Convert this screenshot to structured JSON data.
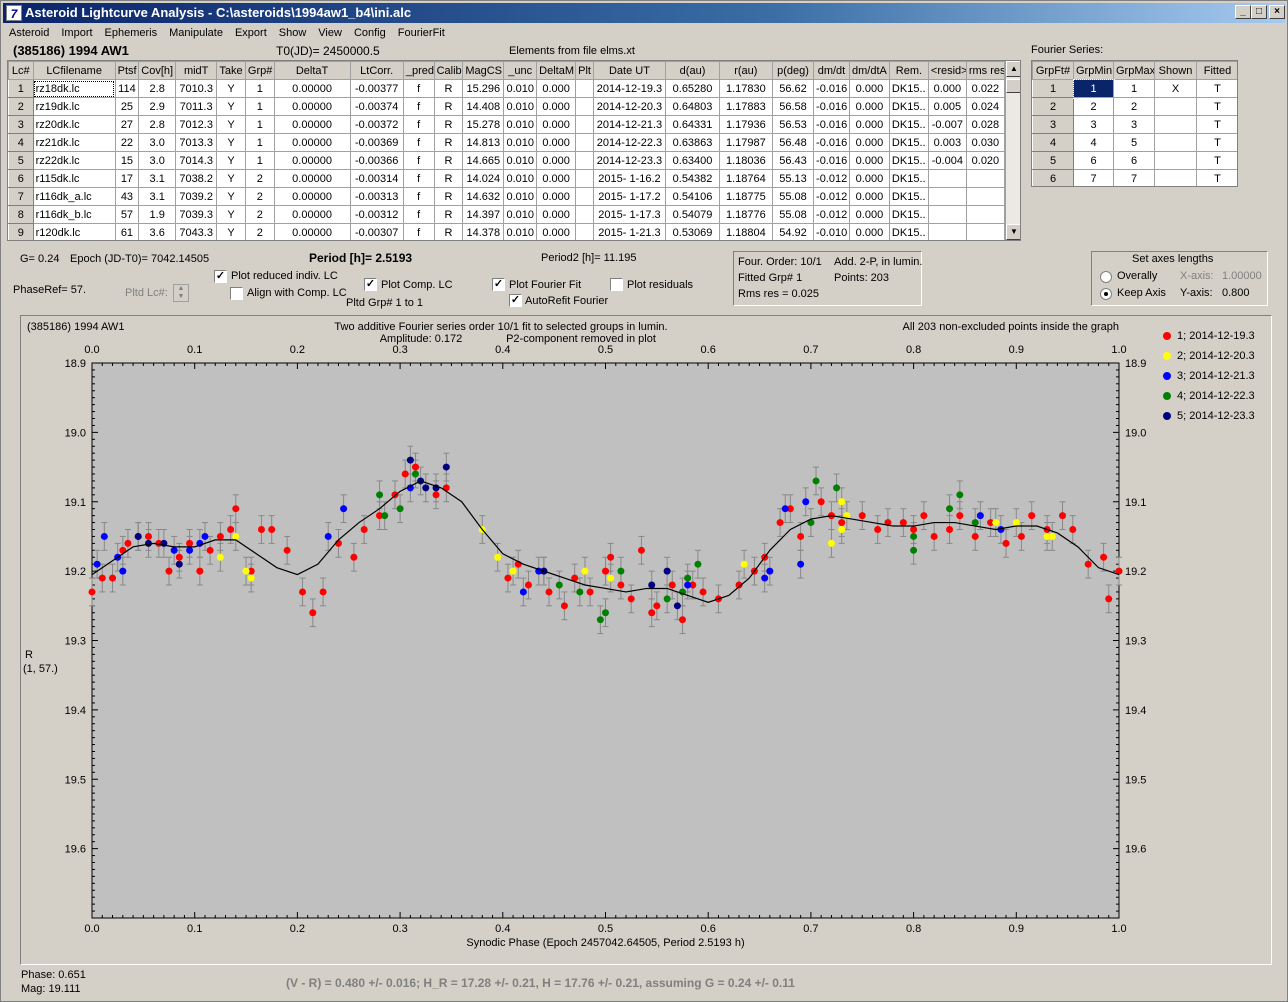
{
  "window": {
    "title": "Asteroid Lightcurve Analysis - C:\\asteroids\\1994aw1_b4\\ini.alc",
    "min": "_",
    "max": "□",
    "close": "×",
    "icon": "7"
  },
  "menu": [
    "Asteroid",
    "Import",
    "Ephemeris",
    "Manipulate",
    "Export",
    "Show",
    "View",
    "Config",
    "FourierFit"
  ],
  "header": {
    "object": "(385186) 1994 AW1",
    "t0": "T0(JD)= 2450000.5",
    "elements": "Elements from file elms.xt",
    "fourier_label": "Fourier Series:"
  },
  "lc_table": {
    "columns": [
      "Lc#",
      "LCfilename",
      "Ptsf",
      "Cov[h]",
      "midT",
      "Take",
      "Grp#",
      "DeltaT",
      "LtCorr.",
      "_pred.",
      "Calib.",
      "MagCS",
      "_unc",
      "DeltaM",
      "Plt",
      "Date UT",
      "d(au)",
      "r(au)",
      "p(deg)",
      "dm/dt",
      "dm/dtA",
      "Rem.",
      "<resid>",
      "rms res"
    ],
    "rows": [
      [
        "1",
        "rz18dk.lc",
        "114",
        "2.8",
        "7010.3",
        "Y",
        "1",
        "0.00000",
        "-0.00377",
        "f",
        "R",
        "15.296",
        "0.010",
        "0.000",
        "",
        "2014-12-19.3",
        "0.65280",
        "1.17830",
        "56.62",
        "-0.016",
        "0.000",
        "DK15..",
        "0.000",
        "0.022"
      ],
      [
        "2",
        "rz19dk.lc",
        "25",
        "2.9",
        "7011.3",
        "Y",
        "1",
        "0.00000",
        "-0.00374",
        "f",
        "R",
        "14.408",
        "0.010",
        "0.000",
        "",
        "2014-12-20.3",
        "0.64803",
        "1.17883",
        "56.58",
        "-0.016",
        "0.000",
        "DK15..",
        "0.005",
        "0.024"
      ],
      [
        "3",
        "rz20dk.lc",
        "27",
        "2.8",
        "7012.3",
        "Y",
        "1",
        "0.00000",
        "-0.00372",
        "f",
        "R",
        "15.278",
        "0.010",
        "0.000",
        "",
        "2014-12-21.3",
        "0.64331",
        "1.17936",
        "56.53",
        "-0.016",
        "0.000",
        "DK15..",
        "-0.007",
        "0.028"
      ],
      [
        "4",
        "rz21dk.lc",
        "22",
        "3.0",
        "7013.3",
        "Y",
        "1",
        "0.00000",
        "-0.00369",
        "f",
        "R",
        "14.813",
        "0.010",
        "0.000",
        "",
        "2014-12-22.3",
        "0.63863",
        "1.17987",
        "56.48",
        "-0.016",
        "0.000",
        "DK15..",
        "0.003",
        "0.030"
      ],
      [
        "5",
        "rz22dk.lc",
        "15",
        "3.0",
        "7014.3",
        "Y",
        "1",
        "0.00000",
        "-0.00366",
        "f",
        "R",
        "14.665",
        "0.010",
        "0.000",
        "",
        "2014-12-23.3",
        "0.63400",
        "1.18036",
        "56.43",
        "-0.016",
        "0.000",
        "DK15..",
        "-0.004",
        "0.020"
      ],
      [
        "6",
        "r115dk.lc",
        "17",
        "3.1",
        "7038.2",
        "Y",
        "2",
        "0.00000",
        "-0.00314",
        "f",
        "R",
        "14.024",
        "0.010",
        "0.000",
        "",
        "2015- 1-16.2",
        "0.54382",
        "1.18764",
        "55.13",
        "-0.012",
        "0.000",
        "DK15..",
        "",
        ""
      ],
      [
        "7",
        "r116dk_a.lc",
        "43",
        "3.1",
        "7039.2",
        "Y",
        "2",
        "0.00000",
        "-0.00313",
        "f",
        "R",
        "14.632",
        "0.010",
        "0.000",
        "",
        "2015- 1-17.2",
        "0.54106",
        "1.18775",
        "55.08",
        "-0.012",
        "0.000",
        "DK15..",
        "",
        ""
      ],
      [
        "8",
        "r116dk_b.lc",
        "57",
        "1.9",
        "7039.3",
        "Y",
        "2",
        "0.00000",
        "-0.00312",
        "f",
        "R",
        "14.397",
        "0.010",
        "0.000",
        "",
        "2015- 1-17.3",
        "0.54079",
        "1.18776",
        "55.08",
        "-0.012",
        "0.000",
        "DK15..",
        "",
        ""
      ],
      [
        "9",
        "r120dk.lc",
        "61",
        "3.6",
        "7043.3",
        "Y",
        "2",
        "0.00000",
        "-0.00307",
        "f",
        "R",
        "14.378",
        "0.010",
        "0.000",
        "",
        "2015- 1-21.3",
        "0.53069",
        "1.18804",
        "54.92",
        "-0.010",
        "0.000",
        "DK15..",
        "",
        ""
      ]
    ]
  },
  "fourier_table": {
    "columns": [
      "GrpFt#",
      "GrpMin",
      "GrpMax",
      "Shown",
      "Fitted"
    ],
    "rows": [
      [
        "1",
        "1",
        "1",
        "X",
        "T"
      ],
      [
        "2",
        "2",
        "2",
        "",
        "T"
      ],
      [
        "3",
        "3",
        "3",
        "",
        "T"
      ],
      [
        "4",
        "4",
        "5",
        "",
        "T"
      ],
      [
        "5",
        "6",
        "6",
        "",
        "T"
      ],
      [
        "6",
        "7",
        "7",
        "",
        "T"
      ]
    ]
  },
  "controls": {
    "g_value": "G= 0.24",
    "epoch": "Epoch (JD-T0)= 7042.14505",
    "period": "Period [h]= 2.5193",
    "period2": "Period2 [h]= 11.195",
    "phaseref": "PhaseRef= 57.",
    "pltd_lc": "Pltd Lc#:",
    "plot_reduced": "Plot reduced indiv. LC",
    "align_comp": "Align with Comp. LC",
    "plot_comp": "Plot Comp. LC",
    "pltd_grp": "Pltd Grp#  1   to   1",
    "plot_fourier": "Plot Fourier Fit",
    "autorefit": "AutoRefit Fourier",
    "plot_residuals": "Plot residuals",
    "four_order": "Four. Order: 10/1",
    "add_2p": "Add. 2-P, in lumin.",
    "fitted_grp": "Fitted Grp# 1",
    "points": "Points: 203",
    "rms_res": "Rms res     = 0.025",
    "axes_title": "Set axes lengths",
    "overally": "Overally",
    "keep_axis": "Keep Axis",
    "xaxis_label": "X-axis:",
    "xaxis_value": "1.00000",
    "yaxis_label": "Y-axis:",
    "yaxis_value": "0.800",
    "check_mark": "✓"
  },
  "chart_data": {
    "type": "scatter",
    "title_left": "(385186) 1994 AW1",
    "title_center": "Two additive Fourier series order 10/1 fit to selected groups in lumin.",
    "subtitle_a": "Amplitude: 0.172",
    "subtitle_b": "P2-component removed in plot",
    "title_right": "All 203 non-excluded points inside the graph",
    "xlabel": "Synodic Phase (Epoch 2457042.64505, Period 2.5193 h)",
    "ylabel": "R",
    "ylabel2": "(1, 57.)",
    "xlim": [
      0,
      1
    ],
    "ylim": [
      18.9,
      19.7
    ],
    "y_inverted": true,
    "xticks": [
      "0.0",
      "0.1",
      "0.2",
      "0.3",
      "0.4",
      "0.5",
      "0.6",
      "0.7",
      "0.8",
      "0.9",
      "1.0"
    ],
    "yticks": [
      "18.9",
      "19.0",
      "19.1",
      "19.2",
      "19.3",
      "19.4",
      "19.5",
      "19.6"
    ],
    "series": [
      {
        "name": "1; 2014-12-19.3",
        "color": "#ff0000",
        "points": [
          [
            0.0,
            19.23
          ],
          [
            0.01,
            19.21
          ],
          [
            0.02,
            19.21
          ],
          [
            0.03,
            19.17
          ],
          [
            0.035,
            19.16
          ],
          [
            0.045,
            19.15
          ],
          [
            0.055,
            19.15
          ],
          [
            0.065,
            19.16
          ],
          [
            0.075,
            19.2
          ],
          [
            0.085,
            19.18
          ],
          [
            0.095,
            19.16
          ],
          [
            0.105,
            19.2
          ],
          [
            0.115,
            19.17
          ],
          [
            0.125,
            19.15
          ],
          [
            0.135,
            19.14
          ],
          [
            0.14,
            19.11
          ],
          [
            0.155,
            19.2
          ],
          [
            0.165,
            19.14
          ],
          [
            0.175,
            19.14
          ],
          [
            0.19,
            19.17
          ],
          [
            0.205,
            19.23
          ],
          [
            0.215,
            19.26
          ],
          [
            0.225,
            19.23
          ],
          [
            0.24,
            19.16
          ],
          [
            0.255,
            19.18
          ],
          [
            0.265,
            19.14
          ],
          [
            0.28,
            19.12
          ],
          [
            0.295,
            19.09
          ],
          [
            0.305,
            19.06
          ],
          [
            0.315,
            19.05
          ],
          [
            0.335,
            19.09
          ],
          [
            0.345,
            19.08
          ],
          [
            0.405,
            19.21
          ],
          [
            0.415,
            19.19
          ],
          [
            0.425,
            19.22
          ],
          [
            0.44,
            19.2
          ],
          [
            0.445,
            19.23
          ],
          [
            0.46,
            19.25
          ],
          [
            0.47,
            19.21
          ],
          [
            0.485,
            19.23
          ],
          [
            0.5,
            19.2
          ],
          [
            0.505,
            19.18
          ],
          [
            0.515,
            19.22
          ],
          [
            0.525,
            19.24
          ],
          [
            0.535,
            19.17
          ],
          [
            0.545,
            19.26
          ],
          [
            0.55,
            19.25
          ],
          [
            0.565,
            19.22
          ],
          [
            0.575,
            19.27
          ],
          [
            0.585,
            19.22
          ],
          [
            0.595,
            19.23
          ],
          [
            0.61,
            19.24
          ],
          [
            0.63,
            19.22
          ],
          [
            0.645,
            19.2
          ],
          [
            0.655,
            19.18
          ],
          [
            0.67,
            19.13
          ],
          [
            0.68,
            19.11
          ],
          [
            0.69,
            19.15
          ],
          [
            0.71,
            19.1
          ],
          [
            0.72,
            19.12
          ],
          [
            0.73,
            19.13
          ],
          [
            0.75,
            19.12
          ],
          [
            0.765,
            19.14
          ],
          [
            0.775,
            19.13
          ],
          [
            0.79,
            19.13
          ],
          [
            0.8,
            19.14
          ],
          [
            0.81,
            19.12
          ],
          [
            0.82,
            19.15
          ],
          [
            0.835,
            19.14
          ],
          [
            0.845,
            19.12
          ],
          [
            0.86,
            19.15
          ],
          [
            0.875,
            19.13
          ],
          [
            0.89,
            19.16
          ],
          [
            0.905,
            19.15
          ],
          [
            0.915,
            19.12
          ],
          [
            0.93,
            19.14
          ],
          [
            0.945,
            19.12
          ],
          [
            0.955,
            19.14
          ],
          [
            0.97,
            19.19
          ],
          [
            0.985,
            19.18
          ],
          [
            0.99,
            19.24
          ],
          [
            1.0,
            19.2
          ]
        ]
      },
      {
        "name": "2; 2014-12-20.3",
        "color": "#ffff00",
        "points": [
          [
            0.125,
            19.18
          ],
          [
            0.14,
            19.15
          ],
          [
            0.15,
            19.2
          ],
          [
            0.155,
            19.21
          ],
          [
            0.38,
            19.14
          ],
          [
            0.395,
            19.18
          ],
          [
            0.41,
            19.2
          ],
          [
            0.48,
            19.2
          ],
          [
            0.505,
            19.21
          ],
          [
            0.635,
            19.19
          ],
          [
            0.72,
            19.16
          ],
          [
            0.73,
            19.14
          ],
          [
            0.73,
            19.1
          ],
          [
            0.735,
            19.12
          ],
          [
            0.88,
            19.13
          ],
          [
            0.9,
            19.13
          ],
          [
            0.93,
            19.15
          ],
          [
            0.935,
            19.15
          ]
        ]
      },
      {
        "name": "3; 2014-12-21.3",
        "color": "#0000ff",
        "points": [
          [
            0.005,
            19.19
          ],
          [
            0.012,
            19.15
          ],
          [
            0.025,
            19.18
          ],
          [
            0.03,
            19.2
          ],
          [
            0.08,
            19.17
          ],
          [
            0.095,
            19.17
          ],
          [
            0.105,
            19.16
          ],
          [
            0.11,
            19.15
          ],
          [
            0.23,
            19.15
          ],
          [
            0.245,
            19.11
          ],
          [
            0.31,
            19.08
          ],
          [
            0.42,
            19.23
          ],
          [
            0.435,
            19.2
          ],
          [
            0.58,
            19.22
          ],
          [
            0.655,
            19.21
          ],
          [
            0.66,
            19.2
          ],
          [
            0.675,
            19.11
          ],
          [
            0.69,
            19.19
          ],
          [
            0.695,
            19.1
          ],
          [
            0.865,
            19.12
          ],
          [
            0.885,
            19.14
          ]
        ]
      },
      {
        "name": "4; 2014-12-22.3",
        "color": "#008000",
        "points": [
          [
            0.28,
            19.09
          ],
          [
            0.285,
            19.12
          ],
          [
            0.3,
            19.11
          ],
          [
            0.315,
            19.06
          ],
          [
            0.455,
            19.22
          ],
          [
            0.475,
            19.23
          ],
          [
            0.495,
            19.27
          ],
          [
            0.5,
            19.26
          ],
          [
            0.515,
            19.2
          ],
          [
            0.56,
            19.24
          ],
          [
            0.575,
            19.23
          ],
          [
            0.58,
            19.21
          ],
          [
            0.59,
            19.19
          ],
          [
            0.7,
            19.13
          ],
          [
            0.705,
            19.07
          ],
          [
            0.725,
            19.08
          ],
          [
            0.8,
            19.17
          ],
          [
            0.8,
            19.15
          ],
          [
            0.835,
            19.11
          ],
          [
            0.845,
            19.09
          ],
          [
            0.86,
            19.13
          ]
        ]
      },
      {
        "name": "5; 2014-12-23.3",
        "color": "#000080",
        "points": [
          [
            0.045,
            19.15
          ],
          [
            0.055,
            19.16
          ],
          [
            0.07,
            19.16
          ],
          [
            0.085,
            19.19
          ],
          [
            0.31,
            19.04
          ],
          [
            0.32,
            19.07
          ],
          [
            0.325,
            19.08
          ],
          [
            0.335,
            19.08
          ],
          [
            0.345,
            19.05
          ],
          [
            0.44,
            19.2
          ],
          [
            0.545,
            19.22
          ],
          [
            0.56,
            19.2
          ],
          [
            0.57,
            19.25
          ]
        ]
      }
    ],
    "fit_curve": [
      [
        0.0,
        19.205
      ],
      [
        0.02,
        19.185
      ],
      [
        0.04,
        19.165
      ],
      [
        0.06,
        19.16
      ],
      [
        0.08,
        19.165
      ],
      [
        0.1,
        19.165
      ],
      [
        0.12,
        19.155
      ],
      [
        0.14,
        19.155
      ],
      [
        0.16,
        19.175
      ],
      [
        0.18,
        19.195
      ],
      [
        0.2,
        19.205
      ],
      [
        0.22,
        19.19
      ],
      [
        0.24,
        19.155
      ],
      [
        0.26,
        19.13
      ],
      [
        0.28,
        19.11
      ],
      [
        0.3,
        19.085
      ],
      [
        0.32,
        19.07
      ],
      [
        0.34,
        19.08
      ],
      [
        0.36,
        19.1
      ],
      [
        0.38,
        19.14
      ],
      [
        0.4,
        19.175
      ],
      [
        0.42,
        19.19
      ],
      [
        0.44,
        19.2
      ],
      [
        0.46,
        19.21
      ],
      [
        0.48,
        19.22
      ],
      [
        0.5,
        19.225
      ],
      [
        0.52,
        19.23
      ],
      [
        0.54,
        19.225
      ],
      [
        0.56,
        19.225
      ],
      [
        0.58,
        19.235
      ],
      [
        0.6,
        19.245
      ],
      [
        0.62,
        19.235
      ],
      [
        0.64,
        19.21
      ],
      [
        0.66,
        19.17
      ],
      [
        0.68,
        19.14
      ],
      [
        0.7,
        19.125
      ],
      [
        0.72,
        19.12
      ],
      [
        0.74,
        19.125
      ],
      [
        0.76,
        19.13
      ],
      [
        0.78,
        19.135
      ],
      [
        0.8,
        19.135
      ],
      [
        0.82,
        19.13
      ],
      [
        0.84,
        19.13
      ],
      [
        0.86,
        19.135
      ],
      [
        0.88,
        19.14
      ],
      [
        0.9,
        19.135
      ],
      [
        0.92,
        19.135
      ],
      [
        0.94,
        19.145
      ],
      [
        0.96,
        19.165
      ],
      [
        0.98,
        19.195
      ],
      [
        1.0,
        19.205
      ]
    ],
    "error_bar": 0.02
  },
  "status": {
    "phase": "Phase:  0.651",
    "mag": "Mag:    19.111",
    "vr": "(V - R) = 0.480 +/- 0.016; H_R = 17.28 +/- 0.21, H = 17.76 +/- 0.21, assuming G = 0.24 +/- 0.11"
  }
}
